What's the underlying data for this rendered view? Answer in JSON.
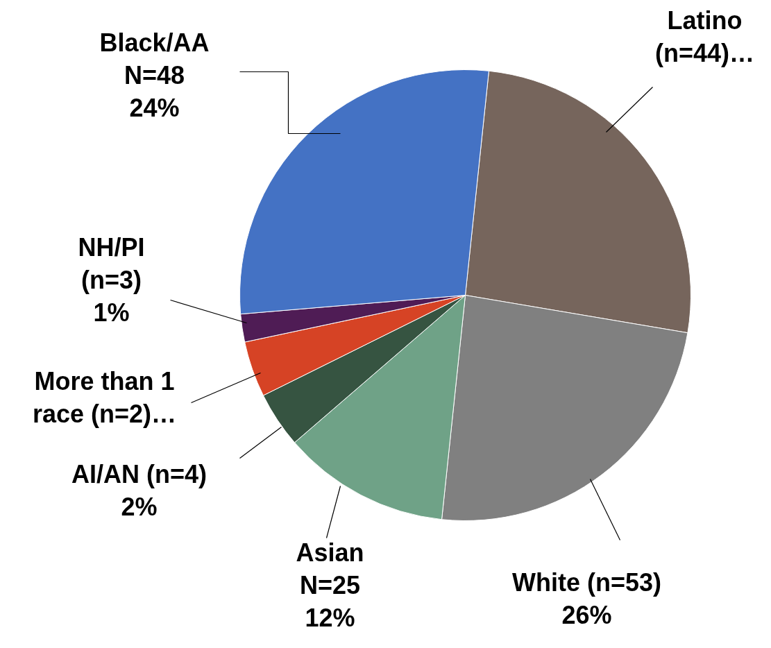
{
  "chart_data": {
    "type": "pie",
    "categories": [
      "Latino\n(n=44)…",
      "White (n=53)\n26%",
      "Asian\nN=25\n12%",
      "AI/AN (n=4)\n2%",
      "More than 1\nrace (n=2)…",
      "NH/PI\n(n=3)\n1%",
      "Black/AA\nN=48\n24%"
    ],
    "values": [
      26,
      24,
      12,
      4,
      4,
      2,
      28
    ],
    "colors": [
      "#76655c",
      "#808080",
      "#6fa287",
      "#365441",
      "#d64325",
      "#4f1c55",
      "#4472c4"
    ]
  }
}
